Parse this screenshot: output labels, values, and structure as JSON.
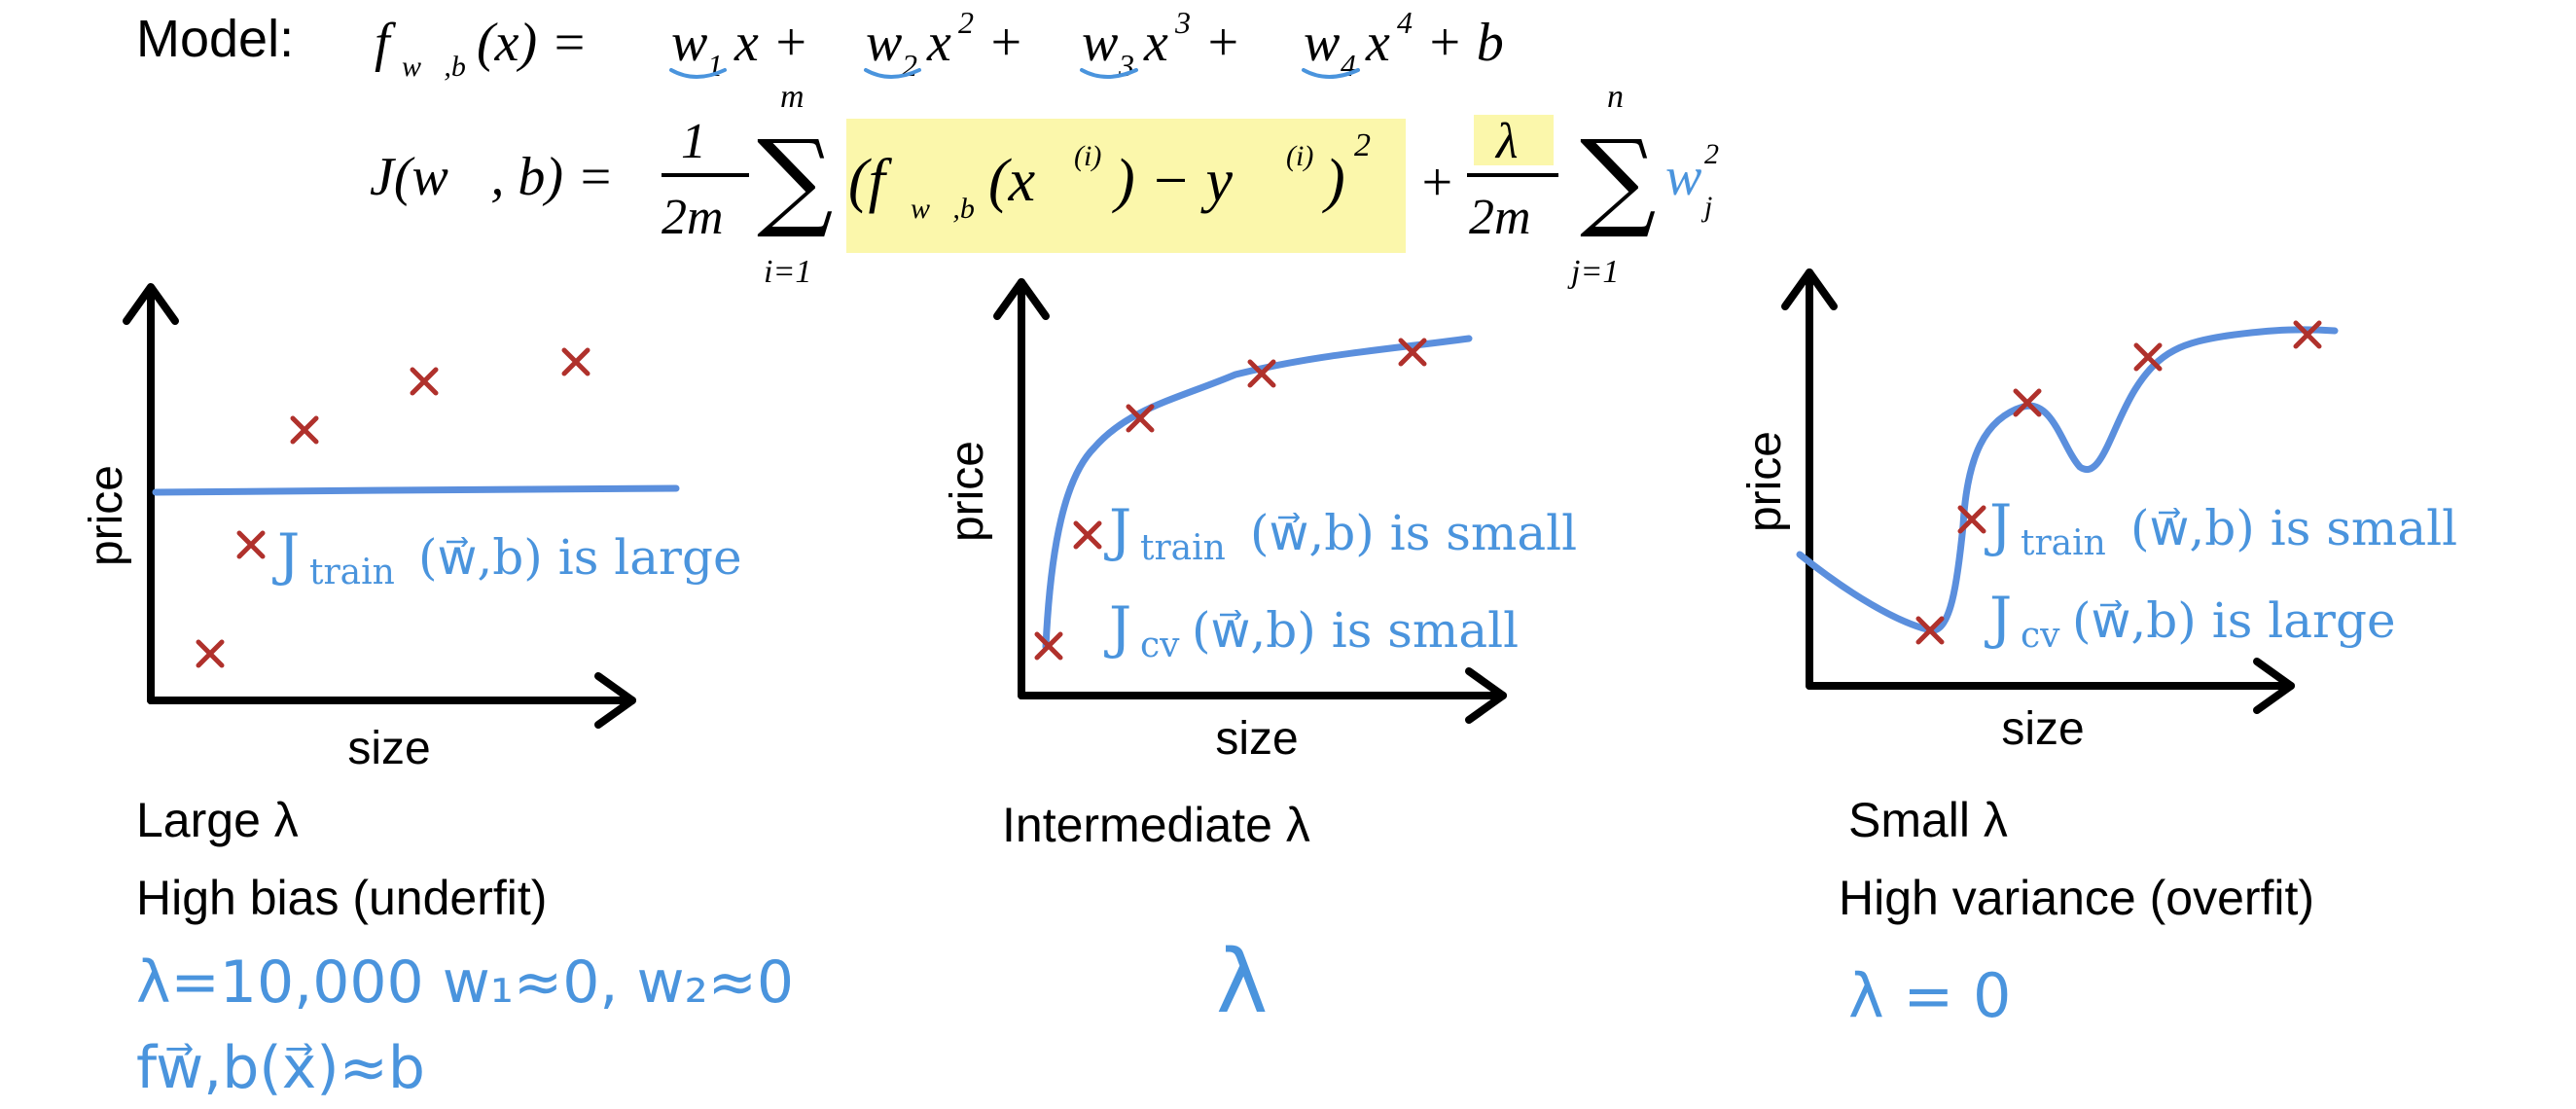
{
  "formula": {
    "model_label": "Model:",
    "model_lhs": "f",
    "model_sub": "w⃗,b",
    "model_arg": "(x) = ",
    "model_terms": [
      "w",
      "1",
      "x + ",
      "w",
      "2",
      "x",
      "2",
      " + ",
      "w",
      "3",
      "x",
      "3",
      " + ",
      "w",
      "4",
      "x",
      "4",
      " + b"
    ],
    "cost_lhs": "J(w⃗, b) = ",
    "cost_frac_num": "1",
    "cost_frac_den": "2m",
    "sum1_top": "m",
    "sum1_bot": "i=1",
    "sum_symbol": "∑",
    "cost_term": "(f",
    "cost_term_sub": "w⃗,b",
    "cost_term_arg": "(x⃗",
    "cost_term_sup_i": "(i)",
    "cost_term_minus": ") − y",
    "cost_term_close": ")",
    "cost_term_sq": "2",
    "plus": "+",
    "lambda_num": "λ",
    "lambda_den": "2m",
    "sum2_top": "n",
    "sum2_bot": "j=1",
    "reg_w": "w",
    "reg_sub": "j",
    "reg_sup": "2",
    "highlight_color": "#fbf7ab"
  },
  "colors": {
    "axis": "#000000",
    "curve": "#5b8fdd",
    "point": "#b0312c",
    "handwriting": "#4a94dd"
  },
  "panels": [
    {
      "ylabel": "price",
      "xlabel": "size",
      "annotation_lines": [
        "J",
        "train",
        "(w⃗,b) is large"
      ],
      "caption_line1": "Large λ",
      "caption_line2": "High bias (underfit)",
      "hand_notes": [
        "λ=10,000   w₁≈0, w₂≈0",
        "fw⃗,b(x⃗)≈b"
      ]
    },
    {
      "ylabel": "price",
      "xlabel": "size",
      "annotation_train": "(w⃗,b) is small",
      "annotation_cv": "(w⃗,b) is small",
      "caption_line1": "Intermediate λ",
      "hand_notes": [
        "λ"
      ]
    },
    {
      "ylabel": "price",
      "xlabel": "size",
      "annotation_train": "(w⃗,b) is small",
      "annotation_cv": "(w⃗,b) is large",
      "caption_line1": "Small λ",
      "caption_line2": "High variance (overfit)",
      "hand_notes": [
        "λ = 0"
      ]
    }
  ],
  "sub_labels": {
    "train": "train",
    "cv": "cv",
    "J": "J"
  }
}
